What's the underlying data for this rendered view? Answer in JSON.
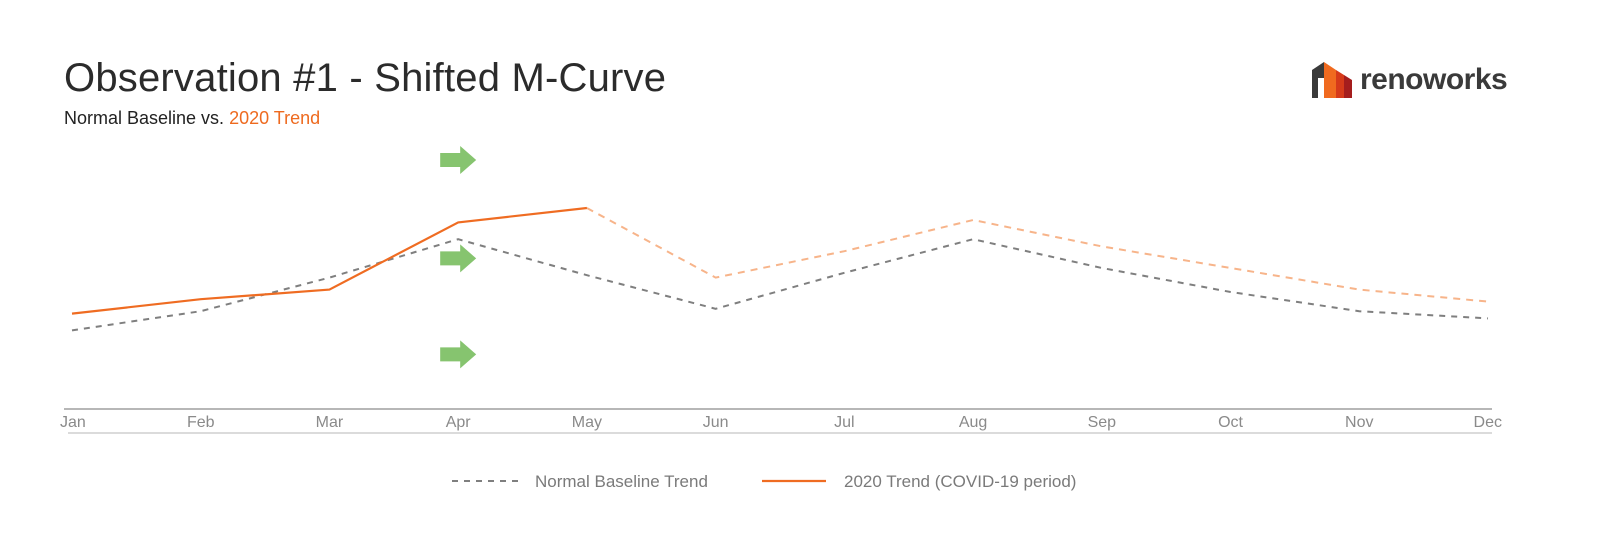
{
  "header": {
    "title": "Observation #1 - Shifted M-Curve",
    "subtitle_prefix": "Normal Baseline vs. ",
    "subtitle_accent": "2020 Trend"
  },
  "logo": {
    "text": "renoworks",
    "colors": [
      "#3a3a3a",
      "#f06a1f",
      "#d63a1a",
      "#a51d1d"
    ]
  },
  "colors": {
    "baseline": "#7f7f7f",
    "trend": "#ef6c22",
    "trend_projected": "#f7b48a",
    "arrow": "#86c46f",
    "axis": "#8c8c8c"
  },
  "chart_data": {
    "type": "line",
    "categories": [
      "Jan",
      "Feb",
      "Mar",
      "Apr",
      "May",
      "Jun",
      "Jul",
      "Aug",
      "Sep",
      "Oct",
      "Nov",
      "Dec"
    ],
    "ylim": [
      0,
      100
    ],
    "grid": false,
    "legend_position": "bottom-center",
    "series": [
      {
        "name": "Normal Baseline Trend",
        "style": "dashed",
        "values": [
          29,
          37,
          51,
          67,
          52,
          38,
          53,
          67,
          55,
          45,
          37,
          34
        ]
      },
      {
        "name": "2020 Trend (COVID-19 period)",
        "style": "solid",
        "values": [
          36,
          42,
          46,
          74,
          80,
          null,
          null,
          null,
          null,
          null,
          null,
          null
        ],
        "projected_values": [
          null,
          null,
          null,
          null,
          80,
          51,
          62,
          75,
          64,
          55,
          46,
          41
        ]
      }
    ],
    "annotations": [
      {
        "type": "arrow",
        "category": "Apr",
        "y": 100,
        "direction": "right"
      },
      {
        "type": "arrow",
        "category": "Apr",
        "y": 59,
        "direction": "right"
      },
      {
        "type": "arrow",
        "category": "Apr",
        "y": 19,
        "direction": "right"
      }
    ]
  }
}
